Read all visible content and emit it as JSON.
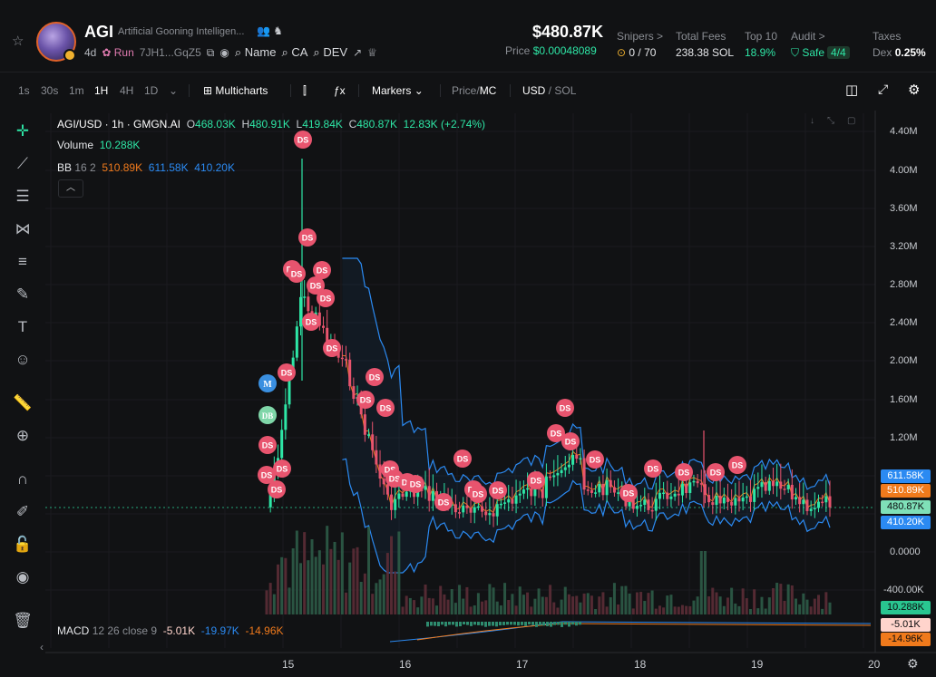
{
  "token": {
    "ticker": "AGI",
    "full_name": "Artificial Gooning Intelligen...",
    "age": "4d",
    "run_label": "Run",
    "address": "7JH1...GqZ5",
    "name_link": "Name",
    "ca_link": "CA",
    "dev_link": "DEV"
  },
  "price": {
    "market_cap": "$480.87K",
    "price_label": "Price",
    "price_value": "$0.00048089"
  },
  "stats": {
    "snipers_label": "Snipers >",
    "snipers_value": "0 / 70",
    "fees_label": "Total Fees",
    "fees_value": "238.38 SOL",
    "top10_label": "Top 10",
    "top10_value": "18.9%",
    "audit_label": "Audit >",
    "audit_value": "Safe",
    "audit_score": "4/4",
    "taxes_label": "Taxes",
    "taxes_prefix": "Dex",
    "taxes_value": "0.25%"
  },
  "toolbar": {
    "intervals": [
      "1s",
      "30s",
      "1m",
      "1H",
      "4H",
      "1D"
    ],
    "active_interval": "1H",
    "multicharts": "Multicharts",
    "markers": "Markers",
    "price_mc_a": "Price",
    "price_mc_b": "MC",
    "usd_sol_a": "USD",
    "usd_sol_b": "SOL"
  },
  "legend": {
    "title": "AGI/USD · 1h · GMGN.AI",
    "o": "468.03K",
    "h": "480.91K",
    "l": "419.84K",
    "c": "480.87K",
    "change": "12.83K (+2.74%)",
    "volume_label": "Volume",
    "volume_value": "10.288K",
    "bb_label": "BB",
    "bb_params": "16 2",
    "bb_mid": "510.89K",
    "bb_upper": "611.58K",
    "bb_lower": "410.20K",
    "macd_label": "MACD",
    "macd_params": "12 26 close 9",
    "macd_v1": "-5.01K",
    "macd_v2": "-19.97K",
    "macd_v3": "-14.96K"
  },
  "axis": {
    "price_labels": [
      "4.40M",
      "4.00M",
      "3.60M",
      "3.20M",
      "2.80M",
      "2.40M",
      "2.00M",
      "1.60M",
      "1.20M",
      "0.0000",
      "-400.00K"
    ],
    "x_labels": [
      "15",
      "16",
      "17",
      "18",
      "19",
      "20"
    ],
    "tags": {
      "bb_upper": "611.58K",
      "bb_mid": "510.89K",
      "last": "480.87K",
      "bb_lower": "410.20K",
      "volume": "10.288K",
      "macd_a": "-5.01K",
      "macd_b": "-14.96K"
    }
  },
  "markers": {
    "ds": "DS",
    "m": "M",
    "db": "DB"
  },
  "colors": {
    "up": "#2ee6a6",
    "down": "#e8546e",
    "bb_band": "#2b8af2",
    "bb_mid": "#f07a1c",
    "marker": "#e8546e"
  }
}
